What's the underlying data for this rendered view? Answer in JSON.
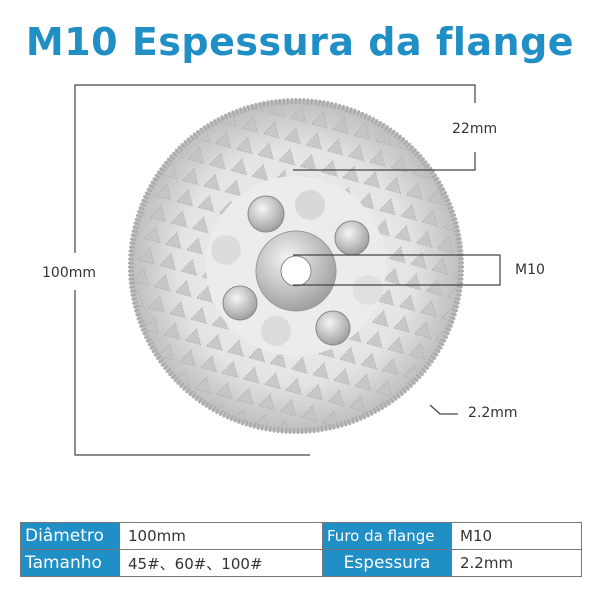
{
  "title": "M10 Espessura da flange",
  "dimensions": {
    "diameter": "100mm",
    "flange_height": "22mm",
    "thread": "M10",
    "thickness": "2.2mm"
  },
  "colors": {
    "accent": "#1f8fc6"
  },
  "specs": {
    "rows": [
      {
        "label1": "Diâmetro",
        "value1": "100mm",
        "label2": "Furo da flange",
        "value2": "M10"
      },
      {
        "label1": "Tamanho",
        "value1": "45#、60#、100#",
        "label2": "Espessura",
        "value2": "2.2mm"
      }
    ]
  }
}
